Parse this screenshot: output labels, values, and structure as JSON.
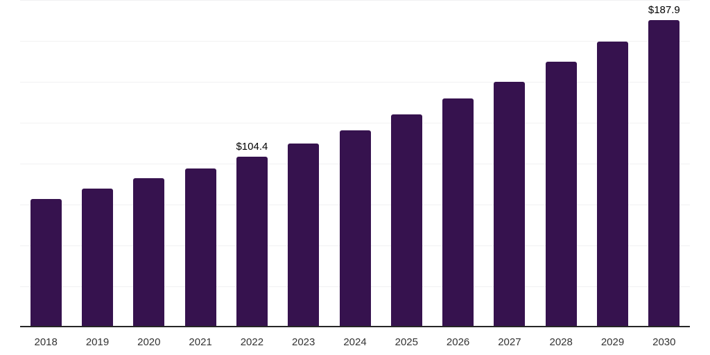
{
  "chart_data": {
    "type": "bar",
    "title": "",
    "xlabel": "",
    "ylabel": "",
    "categories": [
      "2018",
      "2019",
      "2020",
      "2021",
      "2022",
      "2023",
      "2024",
      "2025",
      "2026",
      "2027",
      "2028",
      "2029",
      "2030"
    ],
    "values": [
      78.5,
      84.8,
      91.1,
      97.1,
      104.4,
      112.1,
      120.4,
      130.2,
      139.7,
      150.1,
      162.1,
      174.6,
      187.9
    ],
    "annotations": [
      {
        "category": "2022",
        "text": "$104.4"
      },
      {
        "category": "2030",
        "text": "$187.9"
      }
    ],
    "ylim": [
      0,
      200
    ],
    "gridline_step": 25,
    "grid": "horizontal",
    "y_axis_labels_visible": false,
    "legend_position": "none",
    "bar_color": "#36124e",
    "axis_line_color": "#262626",
    "gridline_color": "#f1f1f2",
    "tick_label_color": "#333333",
    "annotation_color": "#000000",
    "background_color": "#ffffff"
  }
}
